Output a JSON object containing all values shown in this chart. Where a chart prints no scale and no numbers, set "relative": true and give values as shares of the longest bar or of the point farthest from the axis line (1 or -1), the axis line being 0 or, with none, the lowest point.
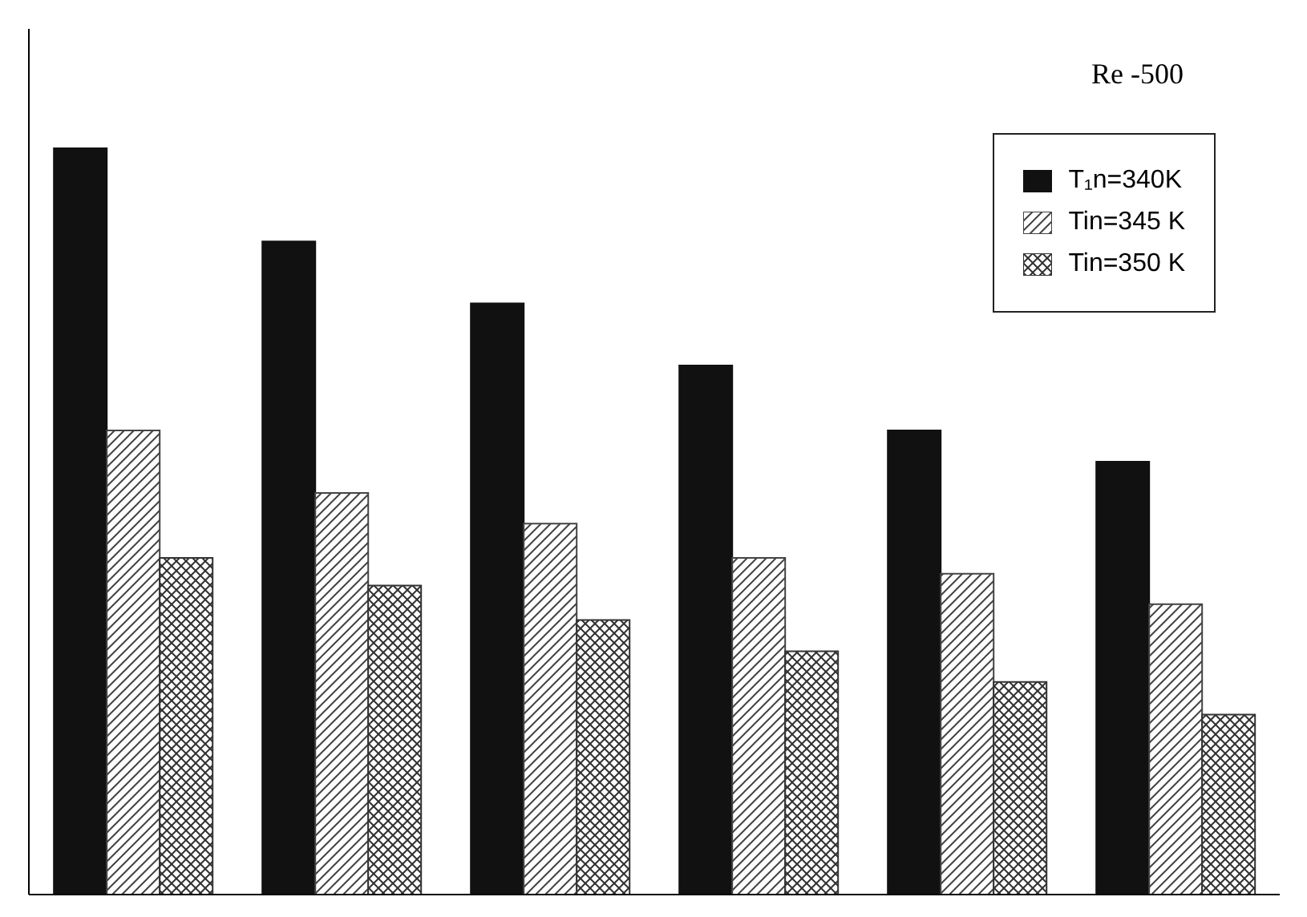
{
  "chart_data": {
    "type": "bar",
    "title": "Re -500",
    "relative": true,
    "categories": [
      null,
      null,
      null,
      null,
      null,
      null
    ],
    "series": [
      {
        "name": "T₁n=340K",
        "color": "#111111",
        "values": [
          1,
          0.875,
          0.792,
          0.709,
          0.622,
          0.58
        ]
      },
      {
        "name": "Tin=345 K",
        "color": "#444444",
        "values": [
          0.622,
          0.538,
          0.497,
          0.451,
          0.43,
          0.389
        ]
      },
      {
        "name": "Tin=350 K",
        "color": "#333333",
        "values": [
          0.451,
          0.414,
          0.368,
          0.326,
          0.285,
          0.241
        ]
      }
    ],
    "legend": "top right",
    "grid": false
  }
}
